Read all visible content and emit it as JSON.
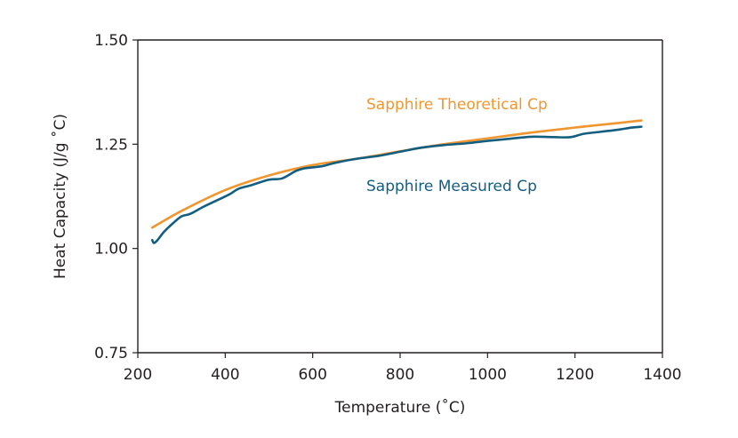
{
  "chart_data": {
    "type": "line",
    "title": "",
    "xlabel": "Temperature (˚C)",
    "ylabel": "Heat Capacity (J/g ˚C)",
    "xlim": [
      200,
      1400
    ],
    "ylim": [
      0.75,
      1.5
    ],
    "x_ticks": [
      "200",
      "400",
      "600",
      "800",
      "1000",
      "1200",
      "1400"
    ],
    "y_ticks": [
      "0.75",
      "1.00",
      "1.25",
      "1.50"
    ],
    "grid": false,
    "legend": "inline labels",
    "series": [
      {
        "name": "Sapphire Theoretical Cp",
        "color": "#f0962e",
        "x": [
          233,
          300,
          400,
          500,
          600,
          700,
          800,
          900,
          1000,
          1100,
          1200,
          1300,
          1352
        ],
        "y": [
          1.05,
          1.09,
          1.14,
          1.175,
          1.2,
          1.215,
          1.233,
          1.25,
          1.264,
          1.278,
          1.29,
          1.301,
          1.307
        ]
      },
      {
        "name": "Sapphire Measured Cp",
        "color": "#135e80",
        "x": [
          233,
          237,
          245,
          260,
          280,
          300,
          320,
          350,
          380,
          410,
          430,
          460,
          500,
          530,
          560,
          580,
          620,
          650,
          700,
          750,
          800,
          850,
          900,
          950,
          1000,
          1050,
          1100,
          1150,
          1190,
          1220,
          1260,
          1300,
          1330,
          1352
        ],
        "y": [
          1.02,
          1.013,
          1.02,
          1.04,
          1.06,
          1.077,
          1.083,
          1.1,
          1.115,
          1.13,
          1.143,
          1.152,
          1.165,
          1.168,
          1.185,
          1.192,
          1.197,
          1.205,
          1.215,
          1.222,
          1.232,
          1.242,
          1.248,
          1.252,
          1.258,
          1.263,
          1.268,
          1.267,
          1.267,
          1.275,
          1.28,
          1.285,
          1.29,
          1.292
        ]
      }
    ]
  }
}
